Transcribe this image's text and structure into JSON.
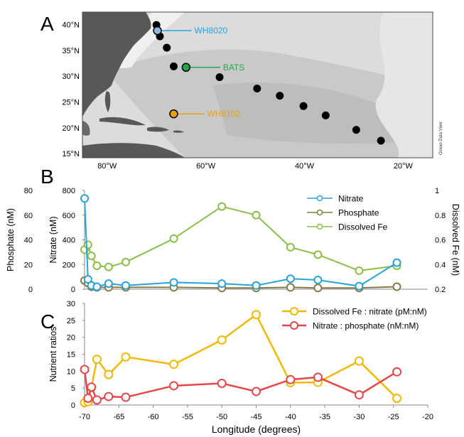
{
  "panels": {
    "a": "A",
    "b": "B",
    "c": "C"
  },
  "map": {
    "lat_ticks": [
      "40°N",
      "35°N",
      "30°N",
      "25°N",
      "20°N",
      "15°N"
    ],
    "lon_ticks": [
      "80°W",
      "60°W",
      "40°W",
      "20°W"
    ],
    "watermark": "Ocean Data View",
    "stations": [
      {
        "name": "WH8020",
        "color": "#29a3dc",
        "fill": "#8fb7e0",
        "lon": -69.8,
        "lat": 38.8
      },
      {
        "name": "BATS",
        "color": "#22a84a",
        "fill": "#22a84a",
        "lon": -64.0,
        "lat": 31.7
      },
      {
        "name": "WH8102",
        "color": "#e8a20f",
        "fill": "#e8a20f",
        "lon": -66.5,
        "lat": 22.7
      }
    ],
    "cruise_points": [
      {
        "lon": -70.0,
        "lat": 39.9
      },
      {
        "lon": -69.3,
        "lat": 37.7
      },
      {
        "lon": -67.9,
        "lat": 35.5
      },
      {
        "lon": -66.5,
        "lat": 31.9
      },
      {
        "lon": -57.2,
        "lat": 29.8
      },
      {
        "lon": -49.6,
        "lat": 27.6
      },
      {
        "lon": -45.0,
        "lat": 26.2
      },
      {
        "lon": -40.2,
        "lat": 24.2
      },
      {
        "lon": -35.7,
        "lat": 22.4
      },
      {
        "lon": -29.5,
        "lat": 19.6
      },
      {
        "lon": -24.5,
        "lat": 17.5
      }
    ]
  },
  "chart_data": [
    {
      "type": "line",
      "panel": "B",
      "x": [
        -70,
        -69.5,
        -69,
        -68.2,
        -66.5,
        -64,
        -57,
        -50,
        -45,
        -40,
        -36,
        -30,
        -24.5
      ],
      "series": [
        {
          "name": "Nitrate",
          "color": "#29a3dc",
          "axis": "nitrate",
          "values": [
            735,
            80,
            30,
            20,
            45,
            30,
            55,
            45,
            30,
            85,
            75,
            25,
            215
          ]
        },
        {
          "name": "Phosphate",
          "color": "#8a7a45",
          "axis": "phosphate",
          "values": [
            7,
            5,
            2,
            1.5,
            1.5,
            1.5,
            1.5,
            1,
            1,
            1.5,
            1,
            1,
            2
          ]
        },
        {
          "name": "Dissolved Fe",
          "color": "#8cbf45",
          "axis": "fe",
          "values": [
            0.52,
            0.56,
            0.47,
            0.39,
            0.38,
            0.42,
            0.61,
            0.87,
            0.8,
            0.54,
            0.48,
            0.35,
            0.39
          ]
        }
      ],
      "axes": {
        "phosphate": {
          "label": "Phosphate (nM)",
          "range": [
            0,
            80
          ],
          "ticks": [
            "80",
            "60",
            "40",
            "20",
            "0"
          ]
        },
        "nitrate": {
          "label": "Nitrate (nM)",
          "range": [
            0,
            800
          ],
          "ticks": [
            "800",
            "600",
            "400",
            "200",
            "0"
          ]
        },
        "fe": {
          "label": "Dissolved Fe (nM)",
          "range": [
            0.2,
            1
          ],
          "ticks": [
            "1",
            "0.8",
            "0.6",
            "0.4",
            "0.2"
          ]
        }
      },
      "xlim": [
        -70,
        -20
      ],
      "legend_position": "top-right"
    },
    {
      "type": "line",
      "panel": "C",
      "x": [
        -70,
        -69.5,
        -69,
        -68.2,
        -66.5,
        -64,
        -57,
        -50,
        -45,
        -40,
        -36,
        -30,
        -24.5
      ],
      "series": [
        {
          "name": "Dissolved Fe : nitrate (pM:nM)",
          "color": "#f5b800",
          "values": [
            0.7,
            1.0,
            5.2,
            13.5,
            9.0,
            14.2,
            12.0,
            19.2,
            26.7,
            6.6,
            6.7,
            13.0,
            2.0
          ]
        },
        {
          "name": "Nitrate : phosphate (nM:nM)",
          "color": "#e8474a",
          "values": [
            10.5,
            2.0,
            5.3,
            1.5,
            2.5,
            2.3,
            5.7,
            6.4,
            4.0,
            7.5,
            8.2,
            3.0,
            9.8
          ]
        }
      ],
      "ylabel": "Nutrient ratios",
      "xlabel": "Longitude (degrees)",
      "ylim": [
        0,
        30
      ],
      "yticks": [
        "30",
        "25",
        "20",
        "15",
        "10",
        "5",
        "0"
      ],
      "xlim": [
        -70,
        -20
      ],
      "xticks": [
        "-70",
        "-65",
        "-60",
        "-55",
        "-50",
        "-45",
        "-40",
        "-35",
        "-30",
        "-25",
        "-20"
      ],
      "legend_position": "top-right"
    }
  ]
}
